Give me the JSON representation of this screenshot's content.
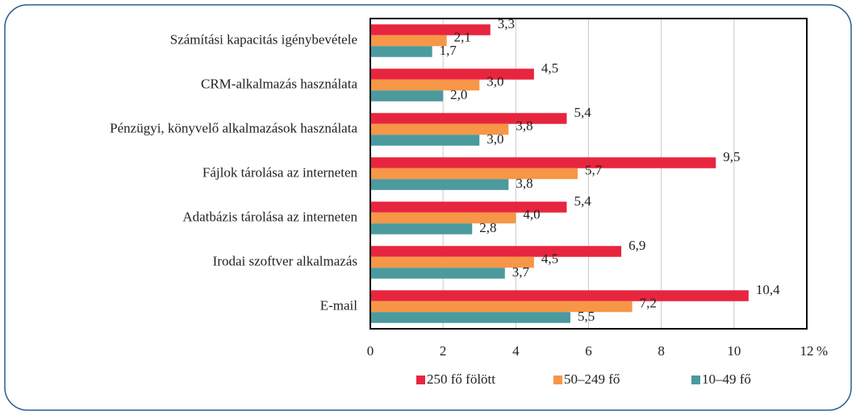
{
  "chart_data": {
    "type": "hbar",
    "categories": [
      "Számítási kapacitás igénybevétele",
      "CRM-alkalmazás használata",
      "Pénzügyi, könyvelő alkalmazások használata",
      "Fájlok tárolása az interneten",
      "Adatbázis tárolása az interneten",
      "Irodai szoftver alkalmazás",
      "E-mail"
    ],
    "series": [
      {
        "name": "250 fő fölött",
        "color": "#e8253f",
        "values": [
          3.3,
          4.5,
          5.4,
          9.5,
          5.4,
          6.9,
          10.4
        ],
        "value_labels": [
          "3,3",
          "4,5",
          "5,4",
          "9,5",
          "5,4",
          "6,9",
          "10,4"
        ]
      },
      {
        "name": "50–249 fő",
        "color": "#f79646",
        "values": [
          2.1,
          3.0,
          3.8,
          5.7,
          4.0,
          4.5,
          7.2
        ],
        "value_labels": [
          "2,1",
          "3,0",
          "3,8",
          "5,7",
          "4,0",
          "4,5",
          "7,2"
        ]
      },
      {
        "name": "10–49 fő",
        "color": "#4a9a9e",
        "values": [
          1.7,
          2.0,
          3.0,
          3.8,
          2.8,
          3.7,
          5.5
        ],
        "value_labels": [
          "1,7",
          "2,0",
          "3,0",
          "3,8",
          "2,8",
          "3,7",
          "5,5"
        ]
      }
    ],
    "xlabel": "%",
    "xlim": [
      0,
      12
    ],
    "xticks": [
      0,
      2,
      4,
      6,
      8,
      10,
      12
    ],
    "grid": true,
    "legend": "bottom"
  }
}
